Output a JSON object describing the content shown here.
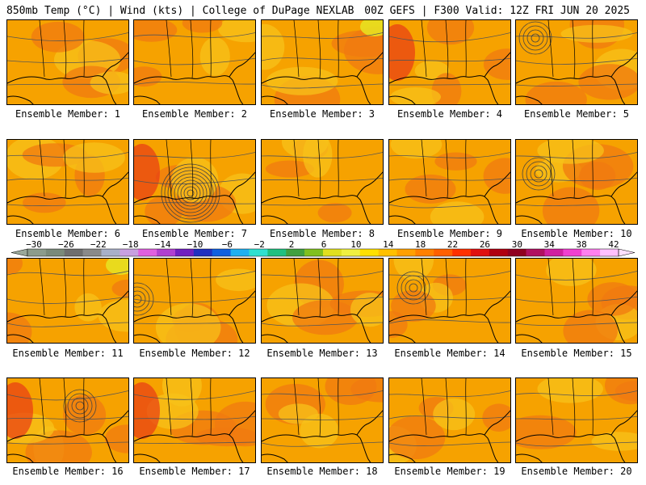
{
  "header": {
    "left": "850mb Temp (°C) | Wind (kts) | College of DuPage NEXLAB",
    "right": "00Z GEFS | F300 Valid: 12Z FRI JUN 20 2025"
  },
  "members": [
    {
      "label": "Ensemble Member: 1"
    },
    {
      "label": "Ensemble Member: 2"
    },
    {
      "label": "Ensemble Member: 3"
    },
    {
      "label": "Ensemble Member: 4"
    },
    {
      "label": "Ensemble Member: 5"
    },
    {
      "label": "Ensemble Member: 6"
    },
    {
      "label": "Ensemble Member: 7"
    },
    {
      "label": "Ensemble Member: 8"
    },
    {
      "label": "Ensemble Member: 9"
    },
    {
      "label": "Ensemble Member: 10"
    },
    {
      "label": "Ensemble Member: 11"
    },
    {
      "label": "Ensemble Member: 12"
    },
    {
      "label": "Ensemble Member: 13"
    },
    {
      "label": "Ensemble Member: 14"
    },
    {
      "label": "Ensemble Member: 15"
    },
    {
      "label": "Ensemble Member: 16"
    },
    {
      "label": "Ensemble Member: 17"
    },
    {
      "label": "Ensemble Member: 18"
    },
    {
      "label": "Ensemble Member: 19"
    },
    {
      "label": "Ensemble Member: 20"
    }
  ],
  "colorbar": {
    "tick_labels": [
      "−30",
      "−26",
      "−22",
      "−18",
      "−14",
      "−10",
      "−6",
      "−2",
      "2",
      "6",
      "10",
      "14",
      "18",
      "22",
      "26",
      "30",
      "34",
      "38",
      "42"
    ],
    "colors": [
      "#8c9c8c",
      "#7a8a7a",
      "#6e6e6e",
      "#8a8a8a",
      "#a8b0c8",
      "#c8a0e0",
      "#e060e0",
      "#b040d0",
      "#7020c0",
      "#2030c0",
      "#1060e0",
      "#20b0f0",
      "#30e0d0",
      "#20c080",
      "#40a040",
      "#80c020",
      "#e0e020",
      "#f0f040",
      "#ffe000",
      "#ffc000",
      "#ffa000",
      "#ff8000",
      "#ff6000",
      "#ff3000",
      "#e01010",
      "#b00010",
      "#900020",
      "#b01060",
      "#d020a0",
      "#f040d0",
      "#ff80f0",
      "#ffc0ff"
    ]
  },
  "map_colors": {
    "base": "#f6a200",
    "warm": "#f07a10",
    "cool": "#f7c21a",
    "hot": "#e83a16",
    "water_line": "#000000"
  }
}
